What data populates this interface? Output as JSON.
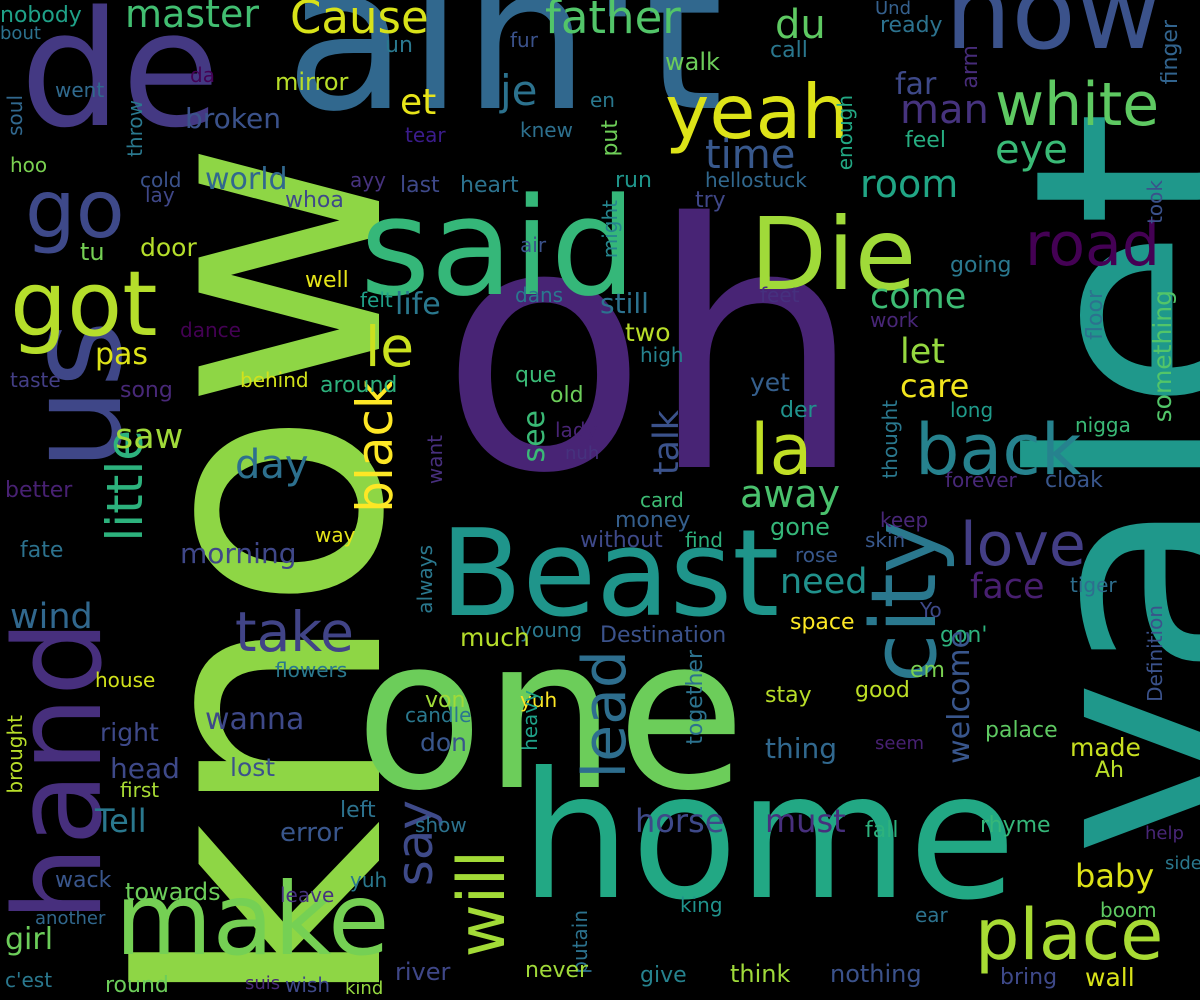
{
  "words": [
    {
      "text": "oh",
      "color": "#482475"
    },
    {
      "text": "know",
      "color": "#8ed645"
    },
    {
      "text": "one",
      "color": "#6ccd5a"
    },
    {
      "text": "valet",
      "color": "#1f988b"
    },
    {
      "text": "ain't",
      "color": "#31688e"
    },
    {
      "text": "de",
      "color": "#443983"
    },
    {
      "text": "home",
      "color": "#22a884"
    },
    {
      "text": "said",
      "color": "#35b779"
    },
    {
      "text": "Beast",
      "color": "#1f958b"
    },
    {
      "text": "hand",
      "color": "#472f7d"
    },
    {
      "text": "us",
      "color": "#3f4788"
    },
    {
      "text": "make",
      "color": "#75d054"
    },
    {
      "text": "now",
      "color": "#3b528b"
    },
    {
      "text": "city",
      "color": "#2a788e"
    },
    {
      "text": "Die",
      "color": "#a0da39"
    },
    {
      "text": "yeah",
      "color": "#dde318"
    },
    {
      "text": "got",
      "color": "#b5de2b"
    },
    {
      "text": "go",
      "color": "#3e4989"
    },
    {
      "text": "place",
      "color": "#a8db34"
    },
    {
      "text": "back",
      "color": "#26828e"
    },
    {
      "text": "white",
      "color": "#5ec962"
    },
    {
      "text": "road",
      "color": "#440154"
    },
    {
      "text": "little",
      "color": "#2db27d"
    },
    {
      "text": "lead",
      "color": "#2e6e8e"
    },
    {
      "text": "love",
      "color": "#433e85"
    },
    {
      "text": "black",
      "color": "#fde725"
    },
    {
      "text": "la",
      "color": "#c0df25"
    },
    {
      "text": "take",
      "color": "#414487"
    },
    {
      "text": "le",
      "color": "#cae11f"
    },
    {
      "text": "will",
      "color": "#a2da37"
    },
    {
      "text": "say",
      "color": "#3e4a89"
    },
    {
      "text": "father",
      "color": "#52c569"
    },
    {
      "text": "Cause",
      "color": "#d8e219"
    },
    {
      "text": "master",
      "color": "#42be71"
    },
    {
      "text": "du",
      "color": "#5ec962"
    },
    {
      "text": "je",
      "color": "#2c728e"
    },
    {
      "text": "man",
      "color": "#46337e"
    },
    {
      "text": "time",
      "color": "#38588c"
    },
    {
      "text": "eye",
      "color": "#3aba76"
    },
    {
      "text": "et",
      "color": "#e7e419"
    },
    {
      "text": "room",
      "color": "#21a685"
    },
    {
      "text": "world",
      "color": "#31688e"
    },
    {
      "text": "broken",
      "color": "#3b528b"
    },
    {
      "text": "mirror",
      "color": "#b8de29"
    },
    {
      "text": "walk",
      "color": "#6ccd5a"
    },
    {
      "text": "un",
      "color": "#2a788e"
    },
    {
      "text": "far",
      "color": "#3e4989"
    },
    {
      "text": "arm",
      "color": "#472c7a"
    },
    {
      "text": "ready",
      "color": "#2c728e"
    },
    {
      "text": "finger",
      "color": "#32648e"
    },
    {
      "text": "Und",
      "color": "#35608d"
    },
    {
      "text": "call",
      "color": "#2a778e"
    },
    {
      "text": "enough",
      "color": "#22a884"
    },
    {
      "text": "feel",
      "color": "#26ad81"
    },
    {
      "text": "fur",
      "color": "#3b528b"
    },
    {
      "text": "da",
      "color": "#440154"
    },
    {
      "text": "went",
      "color": "#306a8e"
    },
    {
      "text": "nobody",
      "color": "#1fa188"
    },
    {
      "text": "bout",
      "color": "#2c728e"
    },
    {
      "text": "soul",
      "color": "#31688e"
    },
    {
      "text": "throw",
      "color": "#2a788e"
    },
    {
      "text": "hoo",
      "color": "#7ad151"
    },
    {
      "text": "tear",
      "color": "#3b1c8c"
    },
    {
      "text": "knew",
      "color": "#2d708e"
    },
    {
      "text": "en",
      "color": "#2a788e"
    },
    {
      "text": "put",
      "color": "#6ece58"
    },
    {
      "text": "cold",
      "color": "#3b528b"
    },
    {
      "text": "lay",
      "color": "#3f4788"
    },
    {
      "text": "whoa",
      "color": "#3e4989"
    },
    {
      "text": "ayy",
      "color": "#46327e"
    },
    {
      "text": "last",
      "color": "#3e4989"
    },
    {
      "text": "heart",
      "color": "#2c728e"
    },
    {
      "text": "run",
      "color": "#1f958b"
    },
    {
      "text": "hellostuck",
      "color": "#31688e"
    },
    {
      "text": "try",
      "color": "#3f4788"
    },
    {
      "text": "took",
      "color": "#3b528b"
    },
    {
      "text": "might",
      "color": "#25858e"
    },
    {
      "text": "door",
      "color": "#b5de2b"
    },
    {
      "text": "air",
      "color": "#3b528b"
    },
    {
      "text": "tu",
      "color": "#75d054"
    },
    {
      "text": "well",
      "color": "#e5e419"
    },
    {
      "text": "felt",
      "color": "#1fa088"
    },
    {
      "text": "dans",
      "color": "#2a788e"
    },
    {
      "text": "feet",
      "color": "#46307e"
    },
    {
      "text": "going",
      "color": "#2a788e"
    },
    {
      "text": "work",
      "color": "#482677"
    },
    {
      "text": "floor",
      "color": "#2c728e"
    },
    {
      "text": "come",
      "color": "#3dbc74"
    },
    {
      "text": "still",
      "color": "#2c728e"
    },
    {
      "text": "life",
      "color": "#2a788e"
    },
    {
      "text": "pas",
      "color": "#dde318"
    },
    {
      "text": "let",
      "color": "#95d840"
    },
    {
      "text": "care",
      "color": "#f1e51d"
    },
    {
      "text": "something",
      "color": "#52c569"
    },
    {
      "text": "two",
      "color": "#b8de29"
    },
    {
      "text": "high",
      "color": "#26828e"
    },
    {
      "text": "dance",
      "color": "#440154"
    },
    {
      "text": "taste",
      "color": "#433e85"
    },
    {
      "text": "song",
      "color": "#482878"
    },
    {
      "text": "behind",
      "color": "#d2e21b"
    },
    {
      "text": "around",
      "color": "#2db27d"
    },
    {
      "text": "que",
      "color": "#3aba76"
    },
    {
      "text": "old",
      "color": "#6ccd5a"
    },
    {
      "text": "yet",
      "color": "#355f8d"
    },
    {
      "text": "long",
      "color": "#1f9a8a"
    },
    {
      "text": "der",
      "color": "#20928c"
    },
    {
      "text": "saw",
      "color": "#a0da39"
    },
    {
      "text": "day",
      "color": "#2d708e"
    },
    {
      "text": "see",
      "color": "#3aba76"
    },
    {
      "text": "talk",
      "color": "#3b528b"
    },
    {
      "text": "lady",
      "color": "#482475"
    },
    {
      "text": "nuh",
      "color": "#46327e"
    },
    {
      "text": "away",
      "color": "#4ac16d"
    },
    {
      "text": "thought",
      "color": "#2a788e"
    },
    {
      "text": "forever",
      "color": "#482878"
    },
    {
      "text": "cloak",
      "color": "#39568c"
    },
    {
      "text": "nigga",
      "color": "#3aba76"
    },
    {
      "text": "better",
      "color": "#482173"
    },
    {
      "text": "want",
      "color": "#472f7d"
    },
    {
      "text": "card",
      "color": "#3dbc74"
    },
    {
      "text": "money",
      "color": "#355f8d"
    },
    {
      "text": "gone",
      "color": "#35b779"
    },
    {
      "text": "keep",
      "color": "#482677"
    },
    {
      "text": "morning",
      "color": "#3f4788"
    },
    {
      "text": "fate",
      "color": "#2c728e"
    },
    {
      "text": "way",
      "color": "#e5e419"
    },
    {
      "text": "always",
      "color": "#2a788e"
    },
    {
      "text": "without",
      "color": "#3e4989"
    },
    {
      "text": "find",
      "color": "#2db27d"
    },
    {
      "text": "rose",
      "color": "#38588c"
    },
    {
      "text": "skin",
      "color": "#38588c"
    },
    {
      "text": "need",
      "color": "#21918c"
    },
    {
      "text": "face",
      "color": "#481f70"
    },
    {
      "text": "tiger",
      "color": "#2e6e8e"
    },
    {
      "text": "wind",
      "color": "#31688e"
    },
    {
      "text": "Destination",
      "color": "#3b528b"
    },
    {
      "text": "young",
      "color": "#2a788e"
    },
    {
      "text": "much",
      "color": "#b5de2b"
    },
    {
      "text": "space",
      "color": "#fde725"
    },
    {
      "text": "Yo",
      "color": "#3e4989"
    },
    {
      "text": "gon'",
      "color": "#2db27d"
    },
    {
      "text": "wanna",
      "color": "#3e4989"
    },
    {
      "text": "Definition",
      "color": "#3b528b"
    },
    {
      "text": "house",
      "color": "#d2e21b"
    },
    {
      "text": "flowers",
      "color": "#2a788e"
    },
    {
      "text": "em",
      "color": "#7ad151"
    },
    {
      "text": "von",
      "color": "#a0da39"
    },
    {
      "text": "candle",
      "color": "#2a788e"
    },
    {
      "text": "yuh",
      "color": "#fde725"
    },
    {
      "text": "heavy",
      "color": "#1fa188"
    },
    {
      "text": "together",
      "color": "#2c728e"
    },
    {
      "text": "stay",
      "color": "#b8de29"
    },
    {
      "text": "good",
      "color": "#bddf26"
    },
    {
      "text": "right",
      "color": "#3e4989"
    },
    {
      "text": "don",
      "color": "#39568c"
    },
    {
      "text": "welcome",
      "color": "#39568c"
    },
    {
      "text": "palace",
      "color": "#5ec962"
    },
    {
      "text": "made",
      "color": "#c8e020"
    },
    {
      "text": "thing",
      "color": "#31688e"
    },
    {
      "text": "seem",
      "color": "#482173"
    },
    {
      "text": "head",
      "color": "#3e4989"
    },
    {
      "text": "lost",
      "color": "#3b528b"
    },
    {
      "text": "Ah",
      "color": "#b8de29"
    },
    {
      "text": "brought",
      "color": "#b8de29"
    },
    {
      "text": "first",
      "color": "#a8db34"
    },
    {
      "text": "Tell",
      "color": "#2a788e"
    },
    {
      "text": "horse",
      "color": "#3e4989"
    },
    {
      "text": "must",
      "color": "#472f7d"
    },
    {
      "text": "left",
      "color": "#2c728e"
    },
    {
      "text": "error",
      "color": "#39568c"
    },
    {
      "text": "show",
      "color": "#2c728e"
    },
    {
      "text": "fall",
      "color": "#2db27d"
    },
    {
      "text": "rhyme",
      "color": "#35b779"
    },
    {
      "text": "help",
      "color": "#482677"
    },
    {
      "text": "side",
      "color": "#2a788e"
    },
    {
      "text": "wack",
      "color": "#39568c"
    },
    {
      "text": "towards",
      "color": "#6ccd5a"
    },
    {
      "text": "yuh",
      "color": "#2a788e"
    },
    {
      "text": "leave",
      "color": "#46337e"
    },
    {
      "text": "baby",
      "color": "#dde318"
    },
    {
      "text": "another",
      "color": "#31688e"
    },
    {
      "text": "girl",
      "color": "#6ccd5a"
    },
    {
      "text": "king",
      "color": "#20928c"
    },
    {
      "text": "ear",
      "color": "#2c728e"
    },
    {
      "text": "boom",
      "color": "#5ec962"
    },
    {
      "text": "putain",
      "color": "#2c728e"
    },
    {
      "text": "c'est",
      "color": "#2a788e"
    },
    {
      "text": "round",
      "color": "#6ccd5a"
    },
    {
      "text": "suis",
      "color": "#482878"
    },
    {
      "text": "wish",
      "color": "#3e4989"
    },
    {
      "text": "kind",
      "color": "#95d840"
    },
    {
      "text": "river",
      "color": "#3f4788"
    },
    {
      "text": "never",
      "color": "#a0da39"
    },
    {
      "text": "give",
      "color": "#26828e"
    },
    {
      "text": "think",
      "color": "#9fda3a"
    },
    {
      "text": "nothing",
      "color": "#3b528b"
    },
    {
      "text": "bring",
      "color": "#3e4989"
    },
    {
      "text": "wall",
      "color": "#d8e219"
    }
  ]
}
